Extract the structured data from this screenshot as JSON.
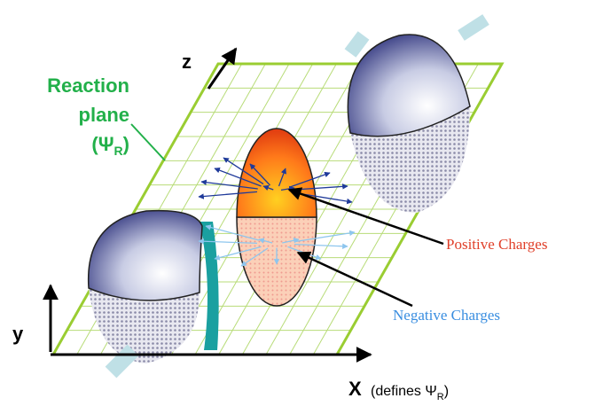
{
  "labels": {
    "reaction_plane": {
      "line1": "Reaction",
      "line2": "plane",
      "symbol": "(Ψ",
      "subscript": "R",
      "close": ")"
    },
    "axes": {
      "z": "z",
      "y": "y",
      "x": "X",
      "x_note": "(defines Ψ",
      "x_note_subscript": "R",
      "x_note_close": ")"
    },
    "annotations": {
      "positive": "Positive Charges",
      "negative": "Negative Charges"
    }
  }
}
